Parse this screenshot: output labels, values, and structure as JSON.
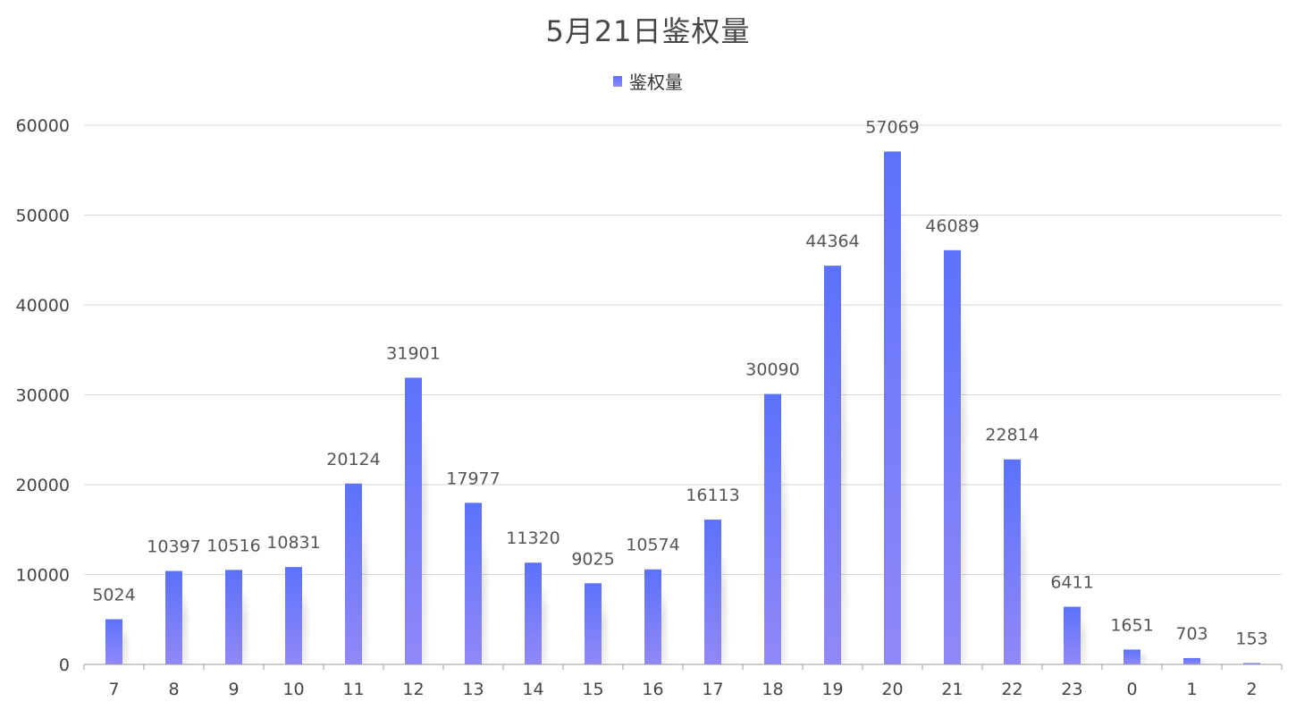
{
  "chart_data": {
    "type": "bar",
    "title": "5月21日鉴权量",
    "xlabel": "",
    "ylabel": "",
    "ylim": [
      0,
      60000
    ],
    "yticks": [
      0,
      10000,
      20000,
      30000,
      40000,
      50000,
      60000
    ],
    "categories": [
      "7",
      "8",
      "9",
      "10",
      "11",
      "12",
      "13",
      "14",
      "15",
      "16",
      "17",
      "18",
      "19",
      "20",
      "21",
      "22",
      "23",
      "0",
      "1",
      "2"
    ],
    "series": [
      {
        "name": "鉴权量",
        "values": [
          5024,
          10397,
          10516,
          10831,
          20124,
          31901,
          17977,
          11320,
          9025,
          10574,
          16113,
          30090,
          44364,
          57069,
          46089,
          22814,
          6411,
          1651,
          703,
          153
        ]
      }
    ],
    "legend_position": "top-center",
    "grid": true,
    "colors": {
      "bar_top": "#5b72fb",
      "bar_bottom": "#9188f8",
      "grid": "#d9d9d9",
      "axis": "#999999",
      "text": "#444444",
      "title": "#464646"
    }
  }
}
